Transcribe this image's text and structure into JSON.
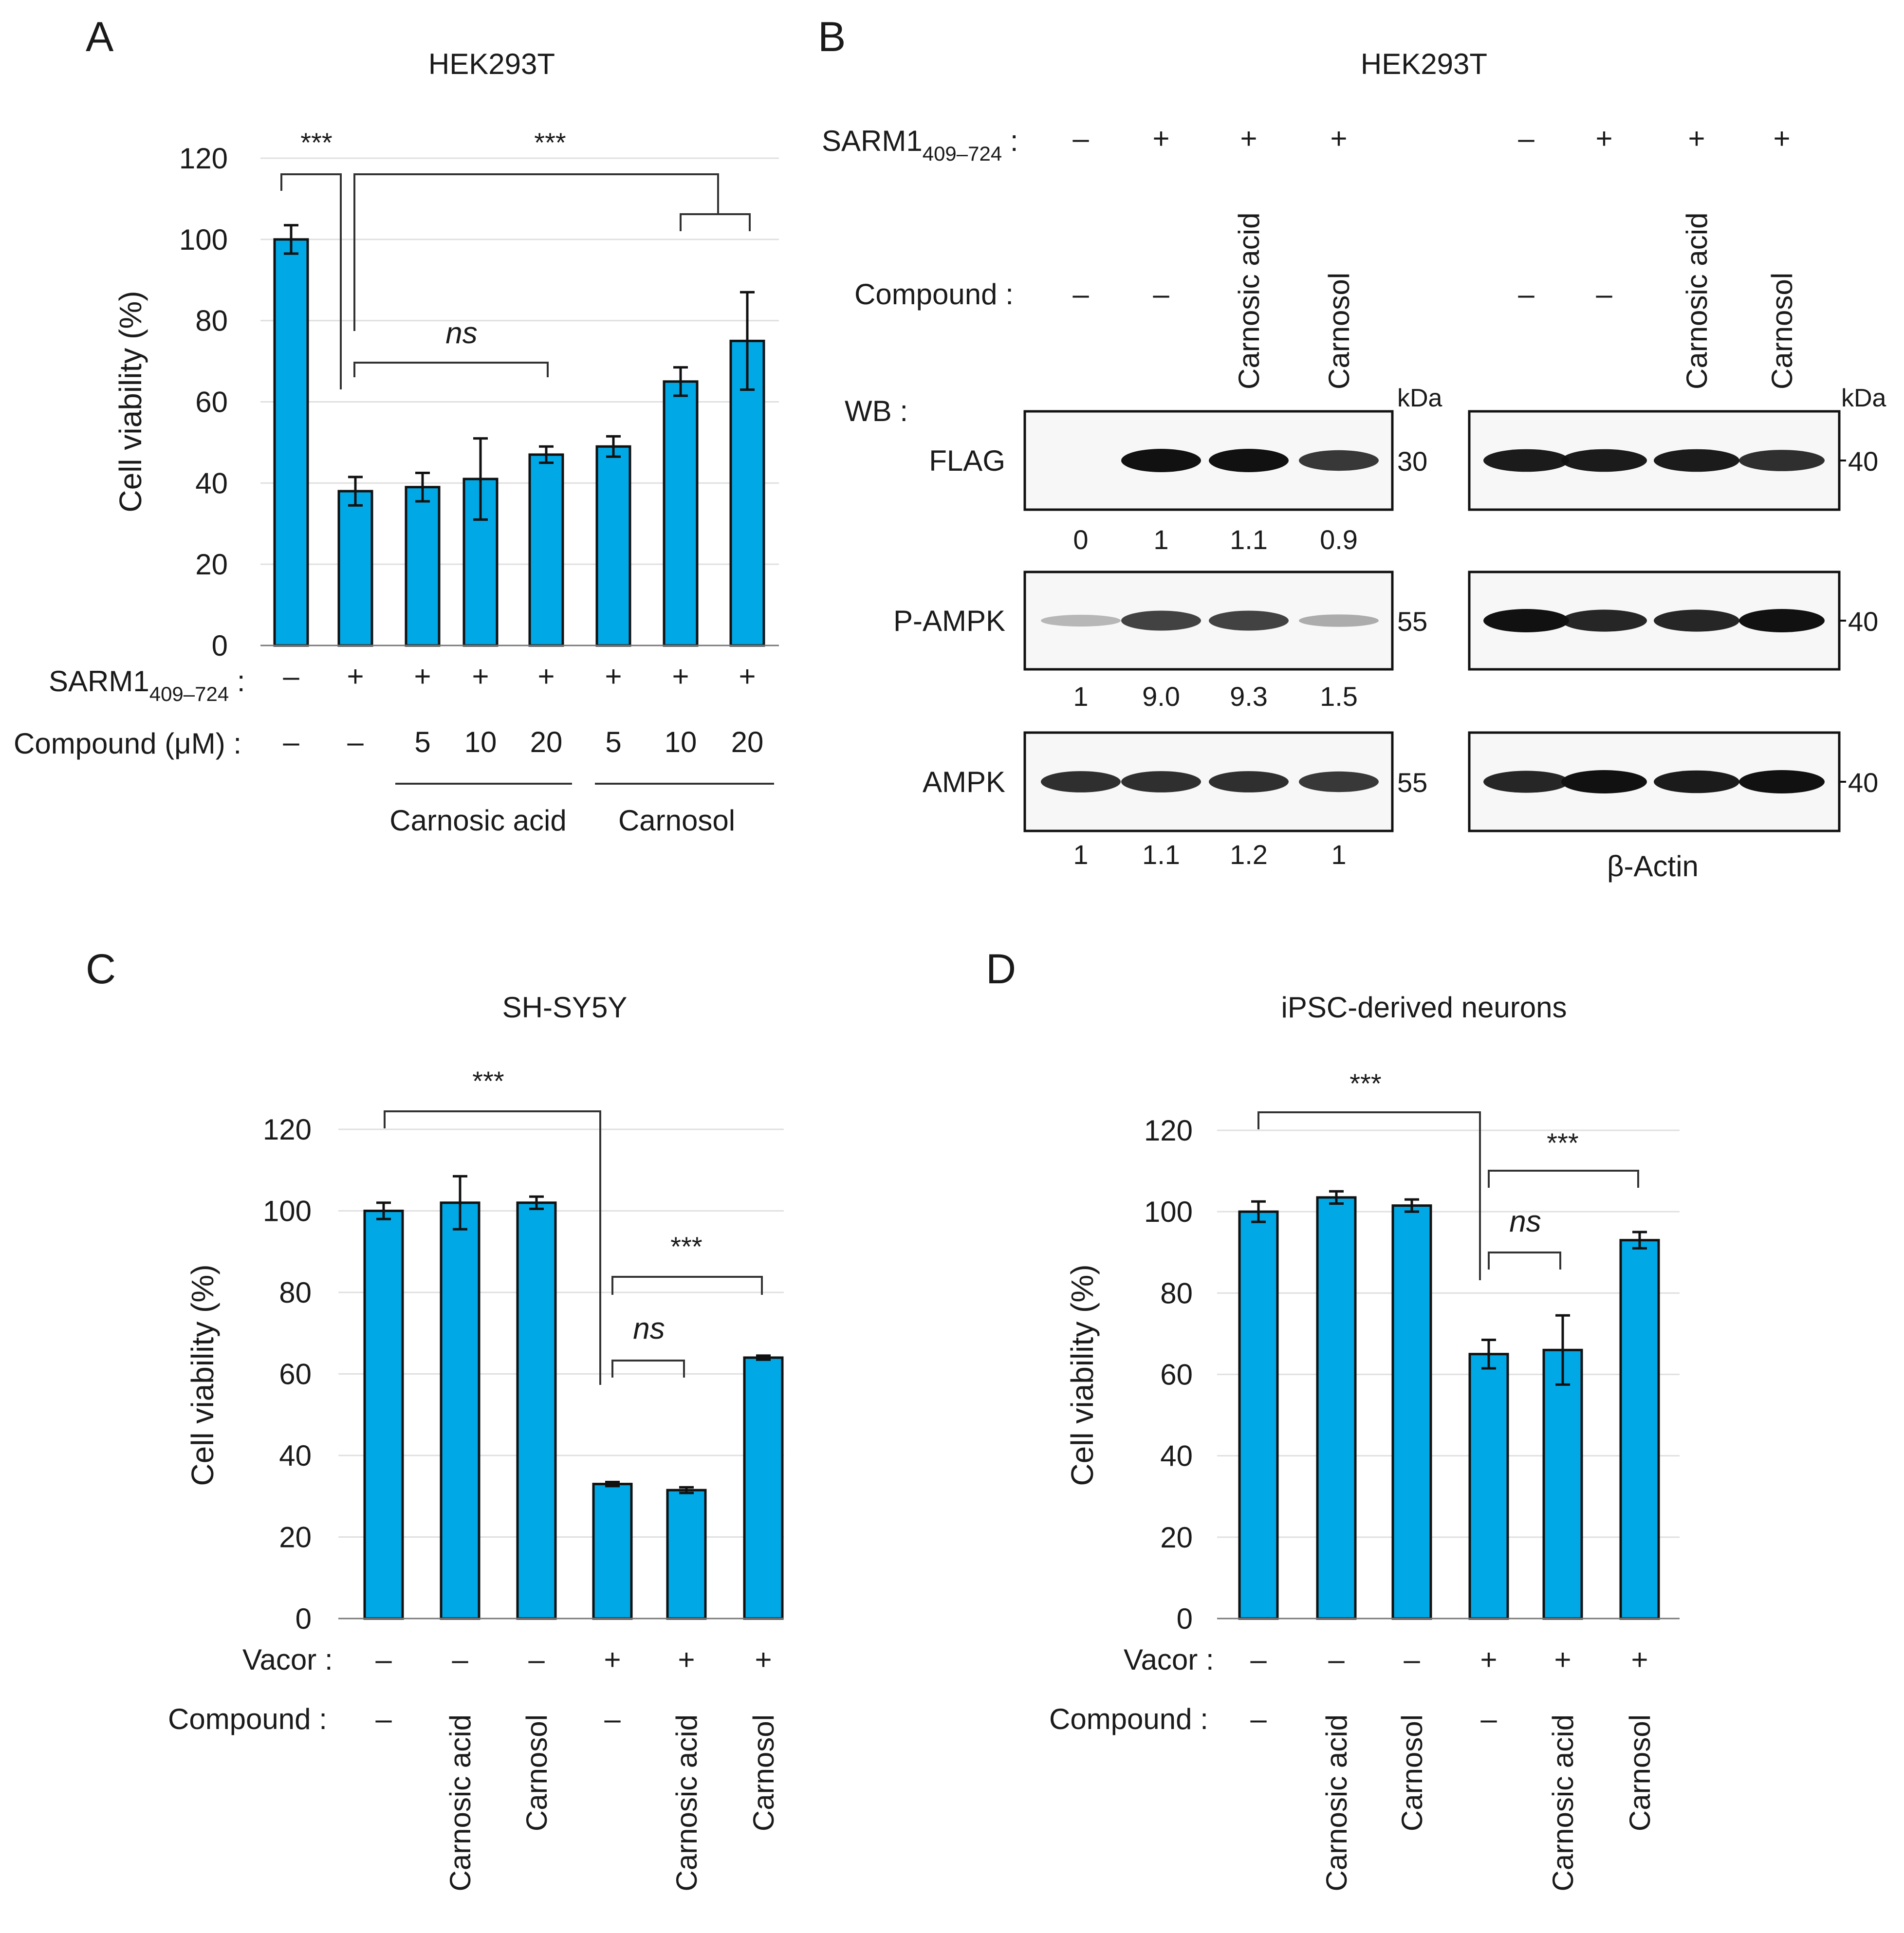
{
  "chart_data": [
    {
      "type": "bar",
      "panel_letter": "A",
      "title": "HEK293T",
      "ylabel": "Cell viability (%)",
      "ylim": [
        0,
        120
      ],
      "yticks": [
        0,
        20,
        40,
        60,
        80,
        100,
        120
      ],
      "grid": true,
      "values": [
        100,
        38,
        39,
        41,
        47,
        49,
        65,
        75
      ],
      "errors": [
        3.5,
        3.5,
        3.5,
        10,
        2,
        2.5,
        3.5,
        12
      ],
      "rows": [
        {
          "label": "SARM1",
          "sub": "409–724",
          "suffix": " :",
          "values": [
            "–",
            "+",
            "+",
            "+",
            "+",
            "+",
            "+",
            "+"
          ]
        },
        {
          "label": "Compound (μM) :",
          "values": [
            "–",
            "–",
            "5",
            "10",
            "20",
            "5",
            "10",
            "20"
          ]
        }
      ],
      "groups": [
        {
          "label": "Carnosic acid",
          "from": 2,
          "to": 4
        },
        {
          "label": "Carnosol",
          "from": 5,
          "to": 7
        }
      ],
      "annotations": [
        {
          "text": "***",
          "italic": false
        },
        {
          "text": "***",
          "italic": false
        },
        {
          "text": "ns",
          "italic": true
        }
      ]
    },
    {
      "type": "bar",
      "panel_letter": "C",
      "title": "SH-SY5Y",
      "ylabel": "Cell viability (%)",
      "ylim": [
        0,
        120
      ],
      "yticks": [
        0,
        20,
        40,
        60,
        80,
        100,
        120
      ],
      "grid": true,
      "values": [
        100,
        102,
        102,
        33,
        31.5,
        64
      ],
      "errors": [
        2,
        6.5,
        1.5,
        0.5,
        0.7,
        0.5
      ],
      "rows": [
        {
          "label": "Vacor :",
          "values": [
            "–",
            "–",
            "–",
            "+",
            "+",
            "+"
          ]
        },
        {
          "label": "Compound :",
          "values": [
            "–",
            "Carnosic acid",
            "Carnosol",
            "–",
            "Carnosic acid",
            "Carnosol"
          ]
        }
      ],
      "annotations": [
        {
          "text": "***",
          "italic": false
        },
        {
          "text": "***",
          "italic": false
        },
        {
          "text": "ns",
          "italic": true
        }
      ]
    },
    {
      "type": "bar",
      "panel_letter": "D",
      "title": "iPSC-derived neurons",
      "ylabel": "Cell viability (%)",
      "ylim": [
        0,
        120
      ],
      "yticks": [
        0,
        20,
        40,
        60,
        80,
        100,
        120
      ],
      "grid": true,
      "values": [
        100,
        103.5,
        101.5,
        65,
        66,
        93
      ],
      "errors": [
        2.5,
        1.5,
        1.5,
        3.5,
        8.5,
        2
      ],
      "rows": [
        {
          "label": "Vacor :",
          "values": [
            "–",
            "–",
            "–",
            "+",
            "+",
            "+"
          ]
        },
        {
          "label": "Compound :",
          "values": [
            "–",
            "Carnosic acid",
            "Carnosol",
            "–",
            "Carnosic acid",
            "Carnosol"
          ]
        }
      ],
      "annotations": [
        {
          "text": "***",
          "italic": false
        },
        {
          "text": "***",
          "italic": false
        },
        {
          "text": "ns",
          "italic": true
        }
      ]
    }
  ],
  "western_blot": {
    "panel_letter": "B",
    "title": "HEK293T",
    "sarm1_label": "SARM1",
    "sarm1_sub": "409–724",
    "sarm1_suffix": " :",
    "compound_label": "Compound :",
    "wb_label": "WB :",
    "sarm1_signs": [
      "–",
      "+",
      "+",
      "+"
    ],
    "compound_values": [
      "–",
      "–",
      "Carnosic acid",
      "Carnosol"
    ],
    "kda_label": "kDa",
    "blots": [
      {
        "label": "FLAG",
        "kda": "30",
        "quant": [
          "0",
          "1",
          "1.1",
          "0.9"
        ],
        "intensity": [
          0,
          1,
          1,
          0.8
        ]
      },
      {
        "label": "P-AMPK",
        "kda": "55",
        "quant": [
          "1",
          "9.0",
          "9.3",
          "1.5"
        ],
        "intensity": [
          0.15,
          0.75,
          0.75,
          0.2
        ]
      },
      {
        "label": "AMPK",
        "kda": "55",
        "quant": [
          "1",
          "1.1",
          "1.2",
          "1"
        ],
        "intensity": [
          0.85,
          0.85,
          0.85,
          0.8
        ]
      }
    ],
    "loading_control": {
      "label": "β-Actin",
      "kda": [
        "40",
        "40",
        "40"
      ],
      "intensity": [
        [
          0.95,
          0.95,
          0.95,
          0.85
        ],
        [
          1,
          0.9,
          0.9,
          1
        ],
        [
          0.9,
          1,
          0.95,
          1
        ]
      ]
    }
  }
}
